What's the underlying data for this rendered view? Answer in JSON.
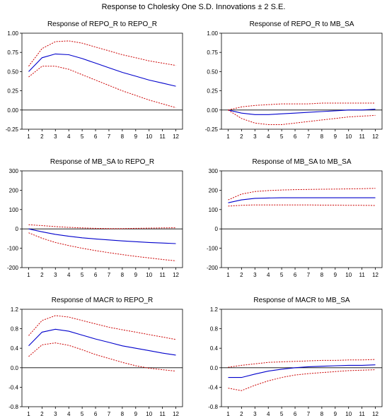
{
  "title": "Response to Cholesky One S.D. Innovations ± 2 S.E.",
  "colors": {
    "response": "#0000cc",
    "band": "#cc0000",
    "axis": "#000000"
  },
  "chart_data": [
    {
      "type": "line",
      "title": "Response of REPO_R to REPO_R",
      "x": [
        1,
        2,
        3,
        4,
        5,
        6,
        7,
        8,
        9,
        10,
        11,
        12
      ],
      "ylim": [
        -0.25,
        1.0
      ],
      "yticks": [
        "1.00",
        "0.75",
        "0.50",
        "0.25",
        "0.00",
        "-0.25"
      ],
      "series": [
        {
          "role": "response",
          "values": [
            0.5,
            0.68,
            0.73,
            0.72,
            0.67,
            0.61,
            0.55,
            0.49,
            0.44,
            0.39,
            0.35,
            0.31
          ]
        },
        {
          "role": "upper",
          "values": [
            0.57,
            0.8,
            0.89,
            0.9,
            0.87,
            0.82,
            0.77,
            0.72,
            0.68,
            0.64,
            0.61,
            0.58
          ]
        },
        {
          "role": "lower",
          "values": [
            0.43,
            0.57,
            0.57,
            0.53,
            0.46,
            0.39,
            0.32,
            0.25,
            0.19,
            0.13,
            0.08,
            0.03
          ]
        }
      ]
    },
    {
      "type": "line",
      "title": "Response of REPO_R to MB_SA",
      "x": [
        1,
        2,
        3,
        4,
        5,
        6,
        7,
        8,
        9,
        10,
        11,
        12
      ],
      "ylim": [
        -0.25,
        1.0
      ],
      "yticks": [
        "1.00",
        "0.75",
        "0.50",
        "0.25",
        "0.00",
        "-0.25"
      ],
      "series": [
        {
          "role": "response",
          "values": [
            0.0,
            -0.04,
            -0.06,
            -0.06,
            -0.05,
            -0.04,
            -0.03,
            -0.02,
            -0.01,
            0.0,
            0.0,
            0.01
          ]
        },
        {
          "role": "upper",
          "values": [
            0.0,
            0.04,
            0.06,
            0.07,
            0.08,
            0.08,
            0.08,
            0.09,
            0.09,
            0.09,
            0.09,
            0.09
          ]
        },
        {
          "role": "lower",
          "values": [
            0.0,
            -0.11,
            -0.17,
            -0.19,
            -0.19,
            -0.17,
            -0.15,
            -0.13,
            -0.11,
            -0.09,
            -0.08,
            -0.07
          ]
        }
      ]
    },
    {
      "type": "line",
      "title": "Response of MB_SA to REPO_R",
      "x": [
        1,
        2,
        3,
        4,
        5,
        6,
        7,
        8,
        9,
        10,
        11,
        12
      ],
      "ylim": [
        -200,
        300
      ],
      "yticks": [
        "300",
        "200",
        "100",
        "0",
        "-100",
        "-200"
      ],
      "series": [
        {
          "role": "response",
          "values": [
            0,
            -15,
            -28,
            -38,
            -46,
            -52,
            -57,
            -62,
            -66,
            -70,
            -73,
            -76
          ]
        },
        {
          "role": "upper",
          "values": [
            22,
            17,
            12,
            8,
            5,
            3,
            2,
            2,
            3,
            4,
            5,
            6
          ]
        },
        {
          "role": "lower",
          "values": [
            -20,
            -48,
            -70,
            -86,
            -100,
            -112,
            -123,
            -133,
            -142,
            -150,
            -158,
            -165
          ]
        }
      ]
    },
    {
      "type": "line",
      "title": "Response of MB_SA to MB_SA",
      "x": [
        1,
        2,
        3,
        4,
        5,
        6,
        7,
        8,
        9,
        10,
        11,
        12
      ],
      "ylim": [
        -200,
        300
      ],
      "yticks": [
        "300",
        "200",
        "100",
        "0",
        "-100",
        "-200"
      ],
      "series": [
        {
          "role": "response",
          "values": [
            135,
            150,
            158,
            160,
            161,
            161,
            161,
            161,
            161,
            161,
            161,
            161
          ]
        },
        {
          "role": "upper",
          "values": [
            150,
            180,
            193,
            198,
            201,
            203,
            204,
            205,
            206,
            207,
            208,
            210
          ]
        },
        {
          "role": "lower",
          "values": [
            118,
            122,
            124,
            124,
            124,
            124,
            124,
            123,
            123,
            122,
            122,
            121
          ]
        }
      ]
    },
    {
      "type": "line",
      "title": "Response of MACR to REPO_R",
      "x": [
        1,
        2,
        3,
        4,
        5,
        6,
        7,
        8,
        9,
        10,
        11,
        12
      ],
      "ylim": [
        -0.8,
        1.2
      ],
      "yticks": [
        "1.2",
        "0.8",
        "0.4",
        "0.0",
        "-0.4",
        "-0.8"
      ],
      "series": [
        {
          "role": "response",
          "values": [
            0.45,
            0.73,
            0.79,
            0.75,
            0.67,
            0.59,
            0.52,
            0.45,
            0.4,
            0.35,
            0.3,
            0.26
          ]
        },
        {
          "role": "upper",
          "values": [
            0.66,
            0.97,
            1.07,
            1.04,
            0.97,
            0.9,
            0.83,
            0.78,
            0.73,
            0.68,
            0.63,
            0.58
          ]
        },
        {
          "role": "lower",
          "values": [
            0.23,
            0.47,
            0.51,
            0.46,
            0.37,
            0.27,
            0.19,
            0.11,
            0.04,
            -0.01,
            -0.04,
            -0.07
          ]
        }
      ]
    },
    {
      "type": "line",
      "title": "Response of MACR to MB_SA",
      "x": [
        1,
        2,
        3,
        4,
        5,
        6,
        7,
        8,
        9,
        10,
        11,
        12
      ],
      "ylim": [
        -0.8,
        1.2
      ],
      "yticks": [
        "1.2",
        "0.8",
        "0.4",
        "0.0",
        "-0.4",
        "-0.8"
      ],
      "series": [
        {
          "role": "response",
          "values": [
            -0.2,
            -0.2,
            -0.13,
            -0.07,
            -0.03,
            0.0,
            0.02,
            0.03,
            0.04,
            0.05,
            0.05,
            0.06
          ]
        },
        {
          "role": "upper",
          "values": [
            0.01,
            0.05,
            0.08,
            0.11,
            0.12,
            0.13,
            0.14,
            0.15,
            0.15,
            0.16,
            0.16,
            0.17
          ]
        },
        {
          "role": "lower",
          "values": [
            -0.42,
            -0.47,
            -0.36,
            -0.27,
            -0.2,
            -0.15,
            -0.12,
            -0.1,
            -0.08,
            -0.06,
            -0.05,
            -0.04
          ]
        }
      ]
    }
  ]
}
